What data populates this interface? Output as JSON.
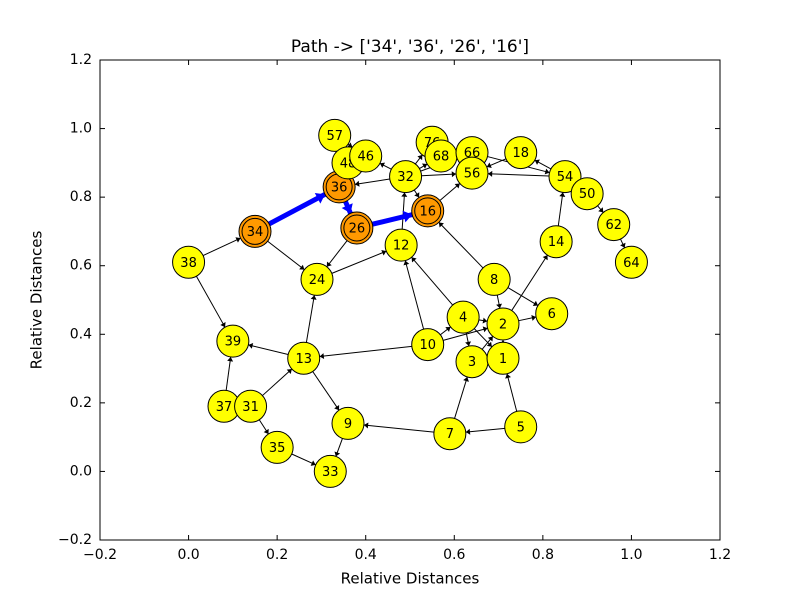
{
  "chart_data": {
    "type": "network",
    "title": "Path -> ['34', '36', '26', '16']",
    "x_label": "Relative Distances",
    "y_label": "Relative Distances",
    "xlim": [
      -0.2,
      1.2
    ],
    "ylim": [
      -0.2,
      1.2
    ],
    "xticks": [
      {
        "value": -0.2,
        "label": "−0.2"
      },
      {
        "value": 0,
        "label": "0.0"
      },
      0.2,
      0.4,
      0.6,
      0.8,
      {
        "value": 1,
        "label": "1.0"
      },
      1.2
    ],
    "yticks": [
      {
        "value": -0.2,
        "label": "−0.2"
      },
      {
        "value": 0,
        "label": "0.0"
      },
      0.2,
      0.4,
      0.6,
      0.8,
      {
        "value": 1,
        "label": "1.0"
      },
      1.2
    ],
    "node_color": "#ffff00",
    "path_node_color": "#ff9900",
    "path_edge_color": "#0000ff",
    "path": [
      "34",
      "36",
      "26",
      "16"
    ],
    "nodes": [
      {
        "label": "34",
        "x": 0.15,
        "y": 0.7
      },
      {
        "label": "36",
        "x": 0.34,
        "y": 0.83
      },
      {
        "label": "26",
        "x": 0.38,
        "y": 0.71
      },
      {
        "label": "16",
        "x": 0.54,
        "y": 0.76
      },
      {
        "label": "57",
        "x": 0.33,
        "y": 0.98
      },
      {
        "label": "48",
        "x": 0.36,
        "y": 0.9
      },
      {
        "label": "46",
        "x": 0.4,
        "y": 0.92
      },
      {
        "label": "32",
        "x": 0.49,
        "y": 0.86
      },
      {
        "label": "76",
        "x": 0.55,
        "y": 0.96
      },
      {
        "label": "68",
        "x": 0.57,
        "y": 0.92
      },
      {
        "label": "66",
        "x": 0.64,
        "y": 0.93
      },
      {
        "label": "56",
        "x": 0.64,
        "y": 0.87
      },
      {
        "label": "18",
        "x": 0.75,
        "y": 0.93
      },
      {
        "label": "54",
        "x": 0.85,
        "y": 0.86
      },
      {
        "label": "50",
        "x": 0.9,
        "y": 0.81
      },
      {
        "label": "62",
        "x": 0.96,
        "y": 0.72
      },
      {
        "label": "64",
        "x": 1.0,
        "y": 0.61
      },
      {
        "label": "14",
        "x": 0.83,
        "y": 0.67
      },
      {
        "label": "12",
        "x": 0.48,
        "y": 0.66
      },
      {
        "label": "38",
        "x": 0.0,
        "y": 0.61
      },
      {
        "label": "24",
        "x": 0.29,
        "y": 0.56
      },
      {
        "label": "8",
        "x": 0.69,
        "y": 0.56
      },
      {
        "label": "6",
        "x": 0.82,
        "y": 0.46
      },
      {
        "label": "4",
        "x": 0.62,
        "y": 0.45
      },
      {
        "label": "2",
        "x": 0.71,
        "y": 0.43
      },
      {
        "label": "10",
        "x": 0.54,
        "y": 0.37
      },
      {
        "label": "3",
        "x": 0.64,
        "y": 0.32
      },
      {
        "label": "1",
        "x": 0.71,
        "y": 0.33
      },
      {
        "label": "39",
        "x": 0.1,
        "y": 0.38
      },
      {
        "label": "13",
        "x": 0.26,
        "y": 0.33
      },
      {
        "label": "37",
        "x": 0.08,
        "y": 0.19
      },
      {
        "label": "31",
        "x": 0.14,
        "y": 0.19
      },
      {
        "label": "35",
        "x": 0.2,
        "y": 0.07
      },
      {
        "label": "33",
        "x": 0.32,
        "y": 0.0
      },
      {
        "label": "9",
        "x": 0.36,
        "y": 0.14
      },
      {
        "label": "7",
        "x": 0.59,
        "y": 0.11
      },
      {
        "label": "5",
        "x": 0.75,
        "y": 0.13
      }
    ],
    "edges": [
      [
        "38",
        "34"
      ],
      [
        "38",
        "39"
      ],
      [
        "13",
        "39"
      ],
      [
        "13",
        "24"
      ],
      [
        "34",
        "24"
      ],
      [
        "24",
        "12"
      ],
      [
        "26",
        "24"
      ],
      [
        "12",
        "32"
      ],
      [
        "8",
        "16"
      ],
      [
        "8",
        "2"
      ],
      [
        "2",
        "14"
      ],
      [
        "14",
        "54"
      ],
      [
        "54",
        "50"
      ],
      [
        "50",
        "62"
      ],
      [
        "62",
        "64"
      ],
      [
        "54",
        "18"
      ],
      [
        "54",
        "56"
      ],
      [
        "66",
        "54"
      ],
      [
        "32",
        "56"
      ],
      [
        "32",
        "68"
      ],
      [
        "32",
        "76"
      ],
      [
        "32",
        "66"
      ],
      [
        "32",
        "46"
      ],
      [
        "32",
        "36"
      ],
      [
        "32",
        "16"
      ],
      [
        "36",
        "57"
      ],
      [
        "48",
        "46"
      ],
      [
        "48",
        "36"
      ],
      [
        "57",
        "46"
      ],
      [
        "18",
        "56"
      ],
      [
        "16",
        "56"
      ],
      [
        "4",
        "12"
      ],
      [
        "8",
        "6"
      ],
      [
        "2",
        "6"
      ],
      [
        "4",
        "2"
      ],
      [
        "4",
        "3"
      ],
      [
        "4",
        "1"
      ],
      [
        "10",
        "2"
      ],
      [
        "10",
        "4"
      ],
      [
        "7",
        "3"
      ],
      [
        "5",
        "7"
      ],
      [
        "5",
        "1"
      ],
      [
        "3",
        "1"
      ],
      [
        "1",
        "2"
      ],
      [
        "10",
        "13"
      ],
      [
        "13",
        "9"
      ],
      [
        "7",
        "9"
      ],
      [
        "9",
        "33"
      ],
      [
        "31",
        "13"
      ],
      [
        "31",
        "37"
      ],
      [
        "37",
        "39"
      ],
      [
        "31",
        "35"
      ],
      [
        "35",
        "33"
      ],
      [
        "10",
        "12"
      ],
      [
        "3",
        "2"
      ]
    ]
  }
}
